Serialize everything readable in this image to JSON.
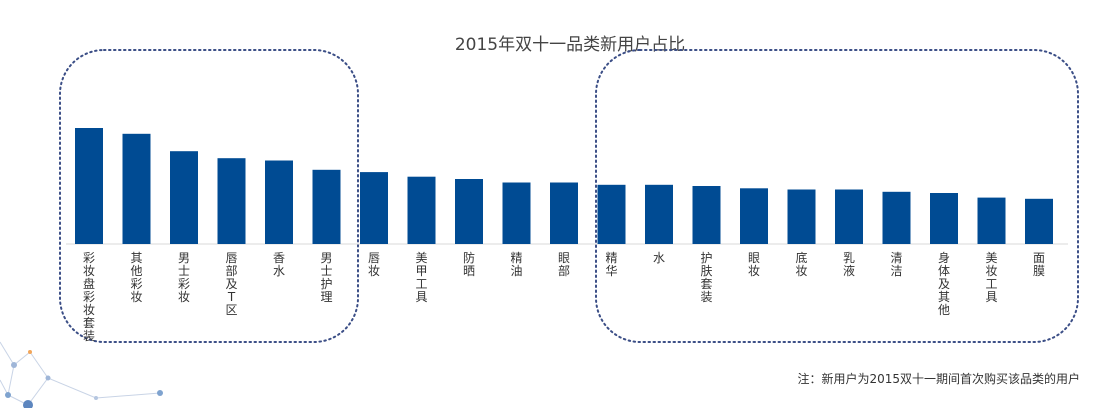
{
  "chart_data": {
    "type": "bar",
    "title": "2015年双十一品类新用户占比",
    "categories": [
      "彩妆盘彩妆套装",
      "其他彩妆",
      "男士彩妆",
      "唇部及T区",
      "香水",
      "男士护理",
      "唇妆",
      "美甲工具",
      "防晒",
      "精油",
      "眼部",
      "精华",
      "水",
      "护肤套装",
      "眼妆",
      "底妆",
      "乳液",
      "清洁",
      "身体及其他",
      "美妆工具",
      "面膜"
    ],
    "values": [
      100,
      95,
      80,
      74,
      72,
      64,
      62,
      58,
      56,
      53,
      53,
      51,
      51,
      50,
      48,
      47,
      47,
      45,
      44,
      40,
      39
    ],
    "bar_color": "#004b93",
    "xlabel": "",
    "ylabel": "",
    "ylim": [
      0,
      100
    ],
    "grid": false,
    "note": "注：新用户为2015双十一期间首次购买该品类的用户"
  }
}
